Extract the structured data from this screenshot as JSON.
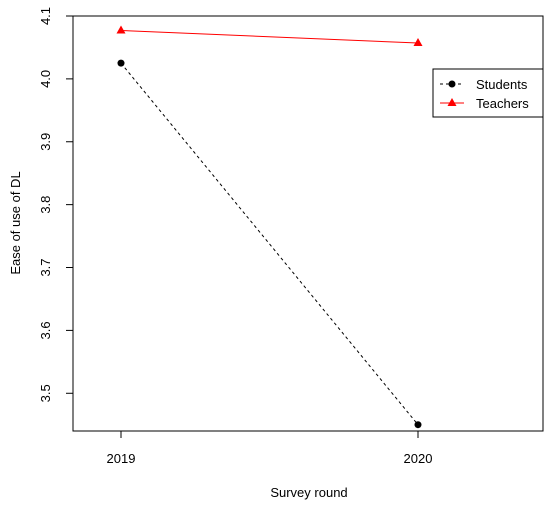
{
  "chart_data": {
    "type": "line",
    "title": "",
    "xlabel": "Survey round",
    "ylabel": "Ease of use of DL",
    "categories": [
      "2019",
      "2020"
    ],
    "ylim": [
      3.44,
      4.1
    ],
    "yticks": [
      "3.5",
      "3.6",
      "3.7",
      "3.8",
      "3.9",
      "4.0",
      "4.1"
    ],
    "grid": false,
    "legend_position": "top-right",
    "series": [
      {
        "name": "Students",
        "values": [
          4.025,
          3.45
        ],
        "color": "#000000",
        "line_style": "dashed",
        "marker": "circle"
      },
      {
        "name": "Teachers",
        "values": [
          4.077,
          4.057
        ],
        "color": "#ff0000",
        "line_style": "solid",
        "marker": "triangle"
      }
    ]
  }
}
